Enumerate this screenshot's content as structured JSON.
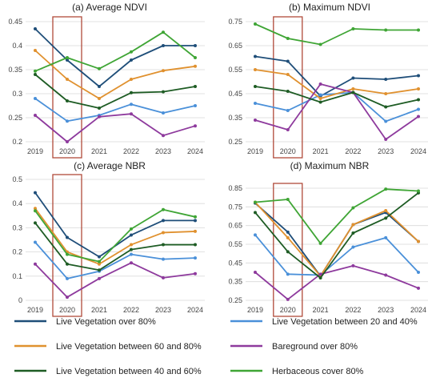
{
  "years": [
    "2019",
    "2020",
    "2021",
    "2022",
    "2023",
    "2024"
  ],
  "highlight_category": "2020",
  "highlight_color": "#b04a3a",
  "legend": {
    "columns": 2,
    "entries": [
      {
        "label": "Live Vegetation over 80%",
        "color": "#1f4e79"
      },
      {
        "label": "Live Vegetation between 20 and 40%",
        "color": "#4a90d9"
      },
      {
        "label": "Live Vegetation between 60 and 80%",
        "color": "#e0912f"
      },
      {
        "label": "Bareground over 80%",
        "color": "#8e3a9d"
      },
      {
        "label": "Live Vegetation between 40 and 60%",
        "color": "#1e5c24"
      },
      {
        "label": "Herbaceous cover 80%",
        "color": "#3fa535"
      }
    ]
  },
  "chart_data": [
    {
      "type": "line",
      "title": "(a) Average NDVI",
      "categories": [
        "2019",
        "2020",
        "2021",
        "2022",
        "2023",
        "2024"
      ],
      "ylim": [
        0.2,
        0.45
      ],
      "yticks": [
        "0.2",
        "0.25",
        "0.3",
        "0.35",
        "0.4",
        "0.45"
      ],
      "grid": true,
      "series": [
        {
          "name": "Live Vegetation over 80%",
          "color": "#1f4e79",
          "values": [
            0.435,
            0.37,
            0.315,
            0.37,
            0.4,
            0.4
          ]
        },
        {
          "name": "Live Vegetation between 20 and 40%",
          "color": "#4a90d9",
          "values": [
            0.29,
            0.243,
            0.255,
            0.278,
            0.26,
            0.275
          ]
        },
        {
          "name": "Live Vegetation between 60 and 80%",
          "color": "#e0912f",
          "values": [
            0.39,
            0.33,
            0.29,
            0.33,
            0.348,
            0.357
          ]
        },
        {
          "name": "Bareground over 80%",
          "color": "#8e3a9d",
          "values": [
            0.255,
            0.2,
            0.252,
            0.258,
            0.213,
            0.233
          ]
        },
        {
          "name": "Live Vegetation between 40 and 60%",
          "color": "#1e5c24",
          "values": [
            0.34,
            0.285,
            0.27,
            0.302,
            0.304,
            0.315
          ]
        },
        {
          "name": "Herbaceous cover 80%",
          "color": "#3fa535",
          "values": [
            0.347,
            0.375,
            0.352,
            0.387,
            0.428,
            0.375
          ]
        }
      ]
    },
    {
      "type": "line",
      "title": "(b) Maximum NDVI",
      "categories": [
        "2019",
        "2020",
        "2021",
        "2022",
        "2023",
        "2024"
      ],
      "ylim": [
        0.25,
        0.75
      ],
      "yticks": [
        "0.25",
        "0.35",
        "0.45",
        "0.55",
        "0.65",
        "0.75"
      ],
      "grid": true,
      "series": [
        {
          "name": "Live Vegetation over 80%",
          "color": "#1f4e79",
          "values": [
            0.605,
            0.585,
            0.44,
            0.515,
            0.51,
            0.525
          ]
        },
        {
          "name": "Live Vegetation between 20 and 40%",
          "color": "#4a90d9",
          "values": [
            0.41,
            0.38,
            0.445,
            0.455,
            0.335,
            0.385
          ]
        },
        {
          "name": "Live Vegetation between 60 and 80%",
          "color": "#e0912f",
          "values": [
            0.55,
            0.53,
            0.43,
            0.47,
            0.45,
            0.47
          ]
        },
        {
          "name": "Bareground over 80%",
          "color": "#8e3a9d",
          "values": [
            0.34,
            0.3,
            0.49,
            0.455,
            0.26,
            0.355
          ]
        },
        {
          "name": "Live Vegetation between 40 and 60%",
          "color": "#1e5c24",
          "values": [
            0.48,
            0.46,
            0.415,
            0.455,
            0.395,
            0.425
          ]
        },
        {
          "name": "Herbaceous cover 80%",
          "color": "#3fa535",
          "values": [
            0.74,
            0.68,
            0.655,
            0.72,
            0.715,
            0.715
          ]
        }
      ]
    },
    {
      "type": "line",
      "title": "(c) Average NBR",
      "categories": [
        "2019",
        "2020",
        "2021",
        "2022",
        "2023",
        "2024"
      ],
      "ylim": [
        0,
        0.5
      ],
      "yticks": [
        "0",
        "0.1",
        "0.2",
        "0.3",
        "0.4",
        "0.5"
      ],
      "grid": true,
      "series": [
        {
          "name": "Live Vegetation over 80%",
          "color": "#1f4e79",
          "values": [
            0.445,
            0.26,
            0.18,
            0.27,
            0.33,
            0.33
          ]
        },
        {
          "name": "Live Vegetation between 20 and 40%",
          "color": "#4a90d9",
          "values": [
            0.24,
            0.09,
            0.12,
            0.19,
            0.17,
            0.175
          ]
        },
        {
          "name": "Live Vegetation between 60 and 80%",
          "color": "#e0912f",
          "values": [
            0.38,
            0.2,
            0.15,
            0.23,
            0.28,
            0.285
          ]
        },
        {
          "name": "Bareground over 80%",
          "color": "#8e3a9d",
          "values": [
            0.15,
            0.013,
            0.09,
            0.155,
            0.093,
            0.11
          ]
        },
        {
          "name": "Live Vegetation between 40 and 60%",
          "color": "#1e5c24",
          "values": [
            0.32,
            0.15,
            0.125,
            0.21,
            0.23,
            0.23
          ]
        },
        {
          "name": "Herbaceous cover 80%",
          "color": "#3fa535",
          "values": [
            0.37,
            0.19,
            0.16,
            0.295,
            0.375,
            0.345
          ]
        }
      ]
    },
    {
      "type": "line",
      "title": "(d) Maximum NBR",
      "categories": [
        "2019",
        "2020",
        "2021",
        "2022",
        "2023",
        "2024"
      ],
      "ylim": [
        0.25,
        0.85
      ],
      "yticks": [
        "0.25",
        "0.35",
        "0.45",
        "0.55",
        "0.65",
        "0.75",
        "0.85"
      ],
      "grid": true,
      "series": [
        {
          "name": "Live Vegetation over 80%",
          "color": "#1f4e79",
          "values": [
            0.77,
            0.615,
            0.38,
            0.655,
            0.72,
            0.565
          ]
        },
        {
          "name": "Live Vegetation between 20 and 40%",
          "color": "#4a90d9",
          "values": [
            0.6,
            0.39,
            0.385,
            0.535,
            0.585,
            0.4
          ]
        },
        {
          "name": "Live Vegetation between 60 and 80%",
          "color": "#e0912f",
          "values": [
            0.775,
            0.585,
            0.38,
            0.655,
            0.73,
            0.565
          ]
        },
        {
          "name": "Bareground over 80%",
          "color": "#8e3a9d",
          "values": [
            0.4,
            0.255,
            0.39,
            0.435,
            0.385,
            0.315
          ]
        },
        {
          "name": "Live Vegetation between 40 and 60%",
          "color": "#1e5c24",
          "values": [
            0.72,
            0.51,
            0.37,
            0.61,
            0.69,
            0.825
          ]
        },
        {
          "name": "Herbaceous cover 80%",
          "color": "#3fa535",
          "values": [
            0.775,
            0.79,
            0.555,
            0.745,
            0.845,
            0.835
          ]
        }
      ]
    }
  ]
}
